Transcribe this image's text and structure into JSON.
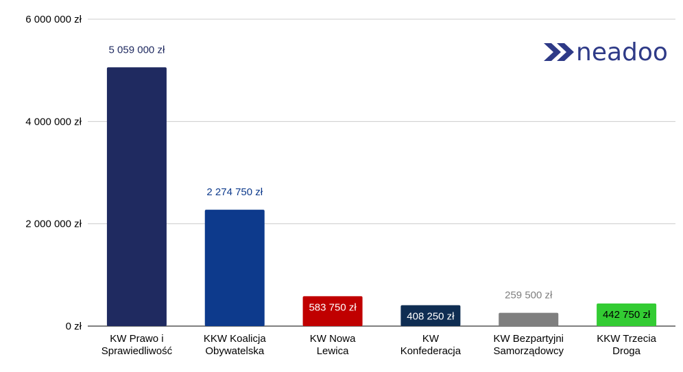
{
  "brand": {
    "name": "neadoo",
    "color": "#2e3a87"
  },
  "chart_data": {
    "type": "bar",
    "categories": [
      [
        "KW Prawo i",
        "Sprawiedliwość"
      ],
      [
        "KKW Koalicja",
        "Obywatelska"
      ],
      [
        "KW Nowa",
        "Lewica"
      ],
      [
        "KW",
        "Konfederacja"
      ],
      [
        "KW Bezpartyjni",
        "Samorządowcy"
      ],
      [
        "KKW Trzecia",
        "Droga"
      ]
    ],
    "values": [
      5059000,
      2274750,
      583750,
      408250,
      259500,
      442750
    ],
    "value_labels": [
      "5 059 000 zł",
      "2 274 750 zł",
      "583 750 zł",
      "408 250 zł",
      "259 500 zł",
      "442 750 zł"
    ],
    "bar_colors": [
      "#1f2a60",
      "#0d3a8c",
      "#c00000",
      "#0f2d52",
      "#7f7f7f",
      "#33cc33"
    ],
    "label_colors": [
      "#1f2a60",
      "#0d3a8c",
      "#ffffff",
      "#ffffff",
      "#7f7f7f",
      "#000000"
    ],
    "label_inside": [
      false,
      false,
      true,
      true,
      false,
      true
    ],
    "y_ticks": [
      0,
      2000000,
      4000000,
      6000000
    ],
    "y_tick_labels": [
      "0 zł",
      "2 000 000 zł",
      "4 000 000 zł",
      "6 000 000 zł"
    ],
    "ylim": [
      0,
      6000000
    ],
    "grid": true,
    "legend": false
  }
}
